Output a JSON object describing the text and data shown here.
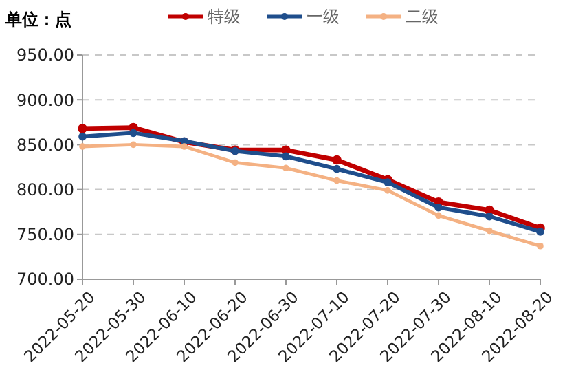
{
  "chart_data": {
    "type": "line",
    "annotations": [
      "单位：点"
    ],
    "categories": [
      "2022-05-20",
      "2022-05-30",
      "2022-06-10",
      "2022-06-20",
      "2022-06-30",
      "2022-07-10",
      "2022-07-20",
      "2022-07-30",
      "2022-08-10",
      "2022-08-20"
    ],
    "series": [
      {
        "name": "特级",
        "color": "#c00000",
        "values": [
          868,
          869,
          853,
          844,
          844,
          833,
          811,
          786,
          777,
          757
        ]
      },
      {
        "name": "一级",
        "color": "#1f4e8c",
        "values": [
          859,
          863,
          854,
          843,
          837,
          823,
          808,
          780,
          770,
          753
        ]
      },
      {
        "name": "二级",
        "color": "#f4b183",
        "values": [
          848,
          850,
          848,
          830,
          824,
          810,
          799,
          771,
          754,
          737
        ]
      }
    ],
    "ylim": [
      700,
      950
    ],
    "yticks": [
      {
        "value": 700,
        "label": "700.00"
      },
      {
        "value": 750,
        "label": "750.00"
      },
      {
        "value": 800,
        "label": "800.00"
      },
      {
        "value": 850,
        "label": "850.00"
      },
      {
        "value": 900,
        "label": "900.00"
      },
      {
        "value": 950,
        "label": "950.00"
      }
    ],
    "grid": "y",
    "legend": "top",
    "marker": "circle",
    "line_style": "solid"
  }
}
